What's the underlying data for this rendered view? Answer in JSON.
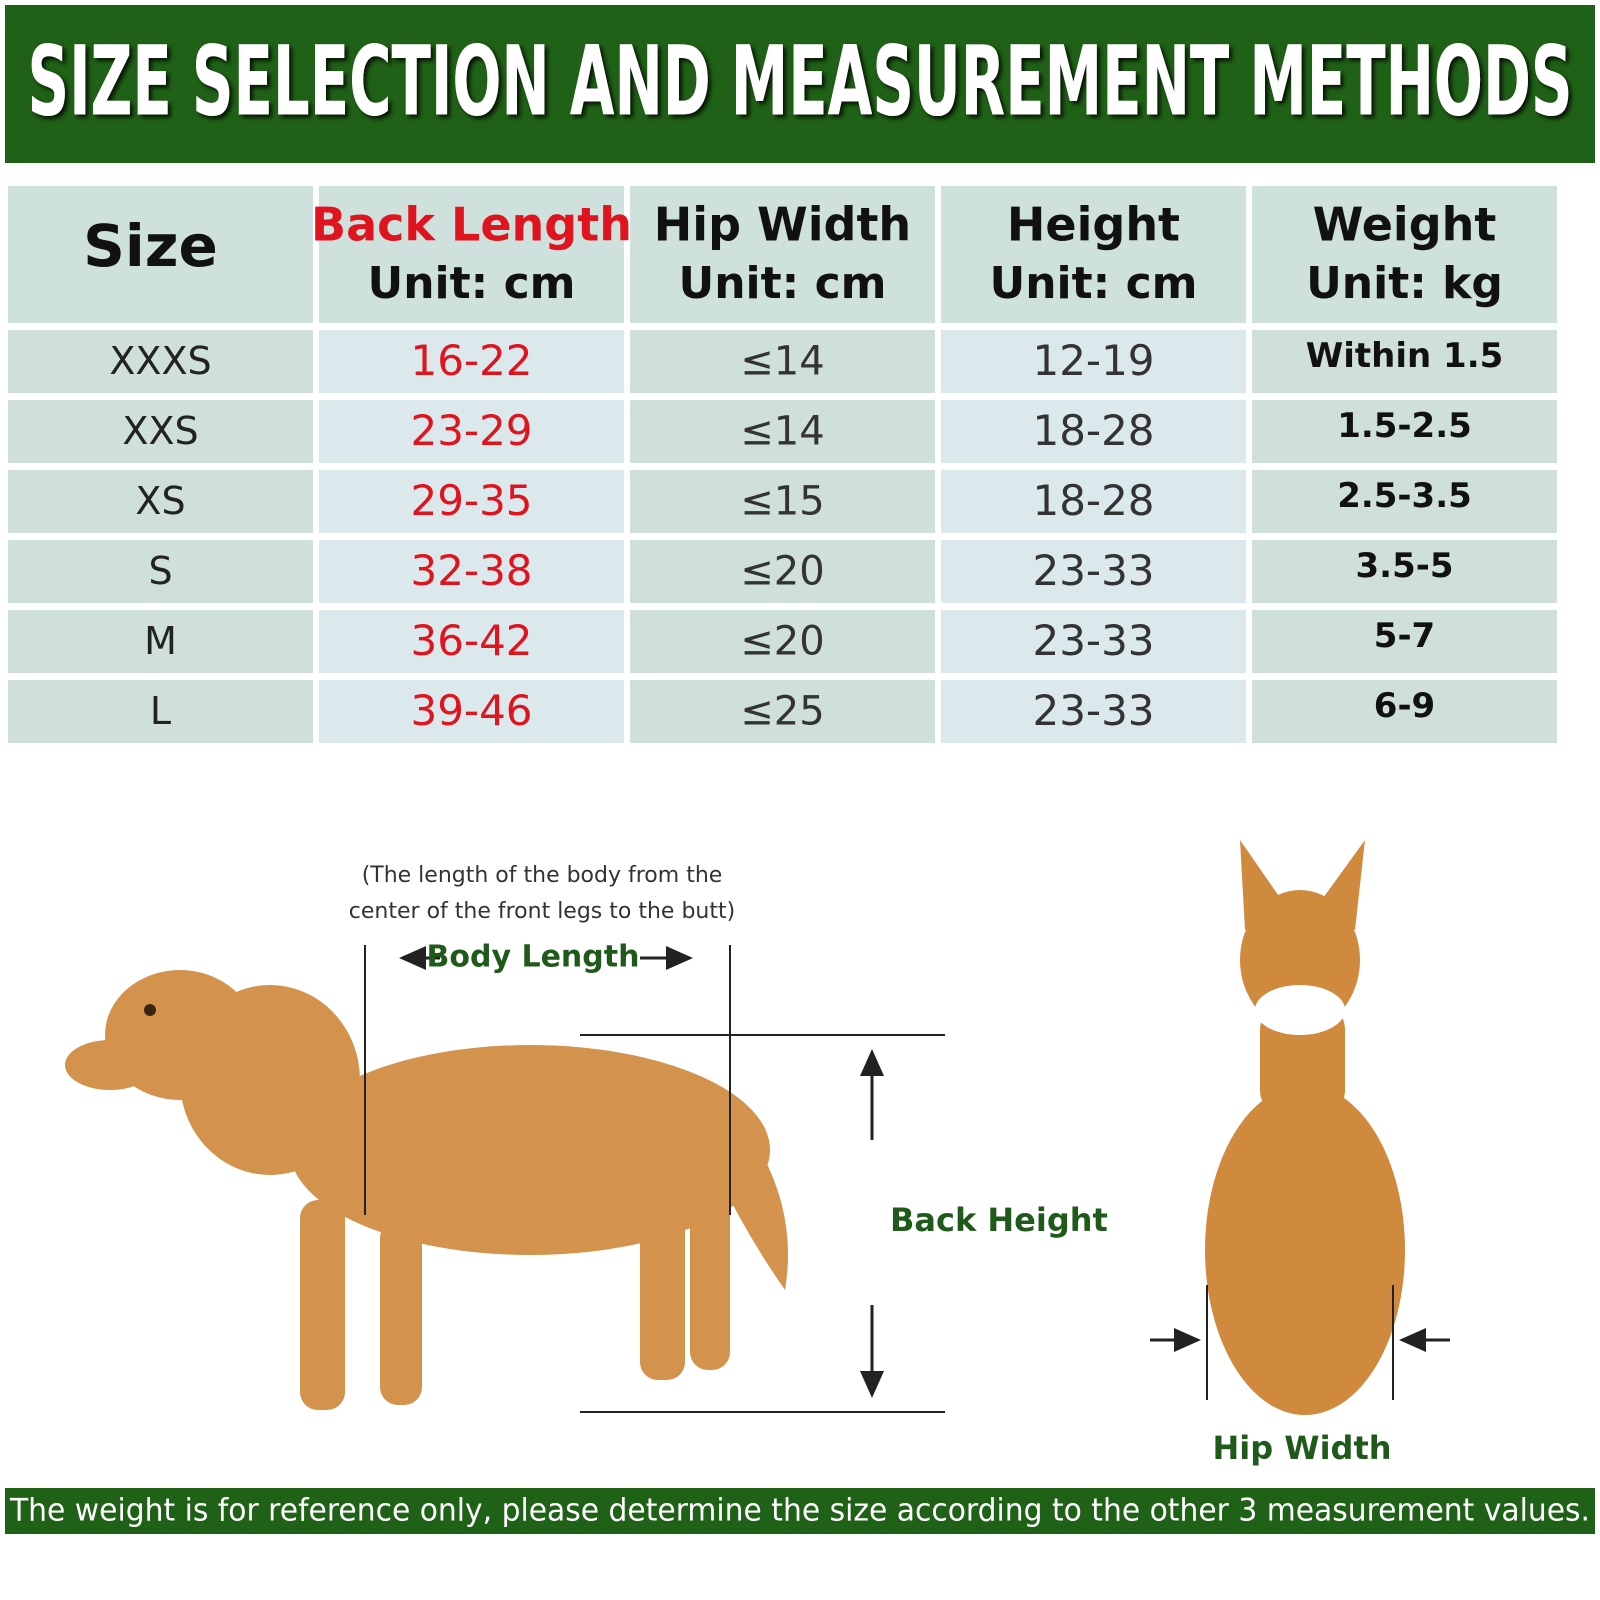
{
  "header": {
    "title": "SIZE SELECTION AND MEASUREMENT METHODS"
  },
  "table": {
    "columns": [
      {
        "title": "Size"
      },
      {
        "title": "Back Length",
        "unit": "Unit: cm"
      },
      {
        "title": "Hip Width",
        "unit": "Unit: cm"
      },
      {
        "title": "Height",
        "unit": "Unit: cm"
      },
      {
        "title": "Weight",
        "unit": "Unit: kg"
      }
    ],
    "rows": [
      [
        "XXXS",
        "16-22",
        "≤14",
        "12-19",
        "Within 1.5"
      ],
      [
        "XXS",
        "23-29",
        "≤14",
        "18-28",
        "1.5-2.5"
      ],
      [
        "XS",
        "29-35",
        "≤15",
        "18-28",
        "2.5-3.5"
      ],
      [
        "S",
        "32-38",
        "≤20",
        "23-33",
        "3.5-5"
      ],
      [
        "M",
        "36-42",
        "≤20",
        "23-33",
        "5-7"
      ],
      [
        "L",
        "39-46",
        "≤25",
        "23-33",
        "6-9"
      ]
    ]
  },
  "diagram": {
    "note_lines": [
      "(The length of the body from the",
      "center of the front legs to the butt)"
    ],
    "body_length": "Body Length",
    "back_height": "Back Height",
    "hip_width": "Hip Width"
  },
  "footer": "The weight is for reference only, please determine the size according to the other 3 measurement values."
}
